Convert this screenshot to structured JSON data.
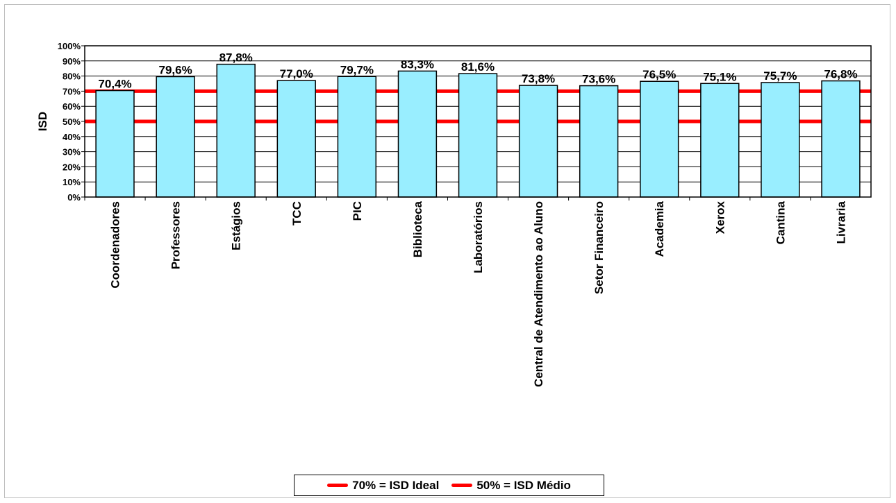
{
  "chart_data": {
    "type": "bar",
    "title": "",
    "xlabel": "",
    "ylabel": "ISD",
    "ylim": [
      0,
      100
    ],
    "yticks": [
      "0%",
      "10%",
      "20%",
      "30%",
      "40%",
      "50%",
      "60%",
      "70%",
      "80%",
      "90%",
      "100%"
    ],
    "grid": true,
    "legend_position": "bottom",
    "categories": [
      "Coordenadores",
      "Professores",
      "Estágios",
      "TCC",
      "PIC",
      "Biblioteca",
      "Laboratórios",
      "Central de Atendimento ao Aluno",
      "Setor Financeiro",
      "Academia",
      "Xerox",
      "Cantina",
      "Livraria"
    ],
    "values": [
      70.4,
      79.6,
      87.8,
      77.0,
      79.7,
      83.3,
      81.6,
      73.8,
      73.6,
      76.5,
      75.1,
      75.7,
      76.8
    ],
    "data_labels": [
      "70,4%",
      "79,6%",
      "87,8%",
      "77,0%",
      "79,7%",
      "83,3%",
      "81,6%",
      "73,8%",
      "73,6%",
      "76,5%",
      "75,1%",
      "75,7%",
      "76,8%"
    ],
    "bar_color": "#99EEFF",
    "reference_lines": [
      {
        "name": "70% = ISD Ideal",
        "value": 70,
        "color": "#FF0000"
      },
      {
        "name": "50% = ISD Médio",
        "value": 50,
        "color": "#FF0000"
      }
    ]
  }
}
